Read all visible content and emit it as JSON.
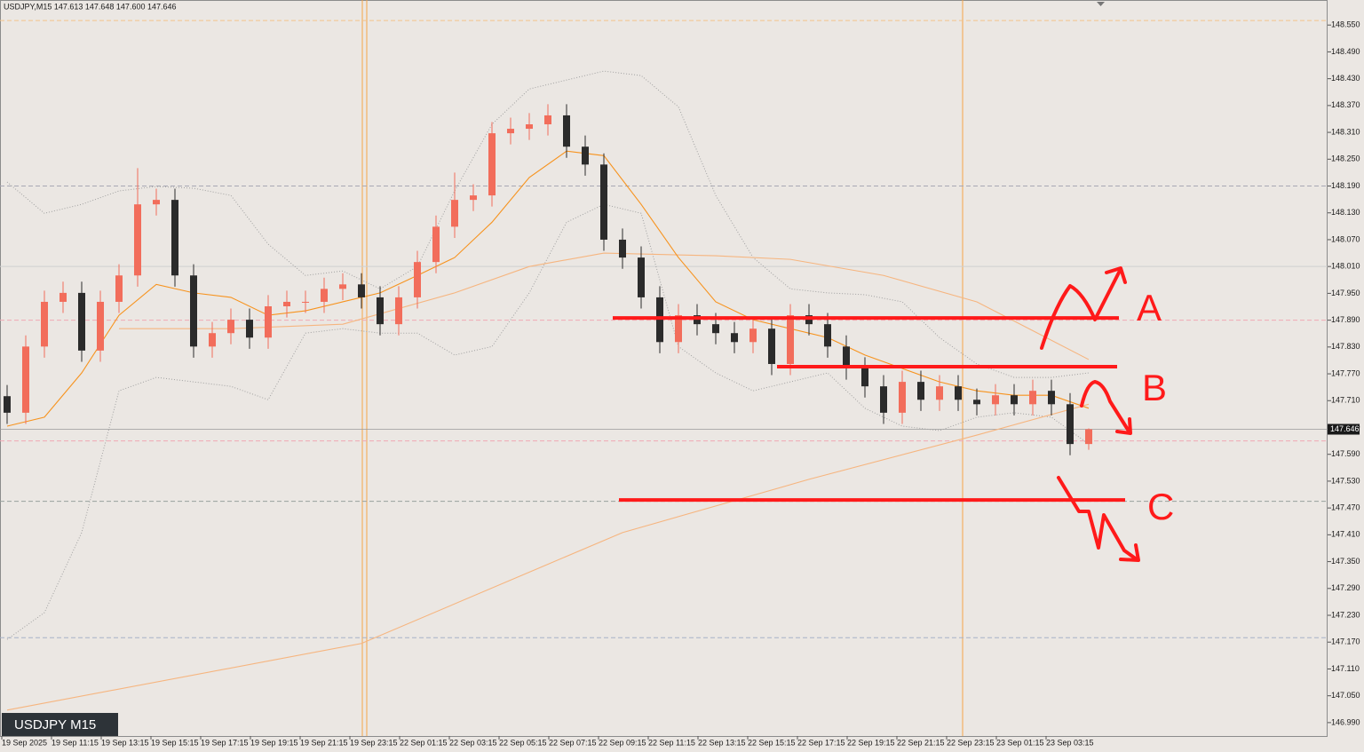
{
  "chart_data": {
    "type": "candlestick",
    "header": "USDJPY,M15  147.613 147.648 147.600 147.646",
    "badge": "USDJPY M15",
    "up_color": "#f26d5b",
    "down_color": "#2b2b2b",
    "open": [
      147.72,
      147.683,
      147.831,
      147.931,
      147.951,
      147.822,
      147.931,
      147.99,
      148.149,
      148.159,
      147.99,
      147.831,
      147.861,
      147.891,
      147.851,
      147.921,
      147.931,
      147.931,
      147.96,
      147.97,
      147.941,
      147.881,
      147.941,
      148.02,
      148.099,
      148.159,
      148.169,
      148.308,
      148.318,
      148.328,
      148.348,
      148.278,
      148.238,
      148.07,
      148.03,
      147.941,
      147.841,
      147.901,
      147.881,
      147.861,
      147.841,
      147.871,
      147.792,
      147.901,
      147.881,
      147.831,
      147.782,
      147.742,
      147.683,
      147.752,
      147.712,
      147.742,
      147.712,
      147.702,
      147.722,
      147.702,
      147.732,
      147.702,
      147.613
    ],
    "high": [
      147.745,
      147.856,
      147.956,
      147.976,
      147.976,
      147.956,
      148.015,
      148.23,
      148.184,
      148.184,
      148.015,
      147.886,
      147.916,
      147.916,
      147.946,
      147.956,
      147.956,
      147.985,
      147.995,
      147.995,
      147.966,
      147.966,
      148.045,
      148.124,
      148.22,
      148.194,
      148.333,
      148.343,
      148.353,
      148.373,
      148.373,
      148.303,
      148.263,
      148.095,
      148.055,
      147.966,
      147.926,
      147.926,
      147.906,
      147.886,
      147.896,
      147.896,
      147.926,
      147.926,
      147.906,
      147.856,
      147.807,
      147.767,
      147.777,
      147.777,
      147.767,
      147.767,
      147.737,
      147.747,
      147.747,
      147.757,
      147.757,
      147.727,
      147.648
    ],
    "low": [
      147.658,
      147.658,
      147.806,
      147.906,
      147.797,
      147.797,
      147.906,
      147.965,
      148.124,
      147.965,
      147.806,
      147.806,
      147.836,
      147.826,
      147.826,
      147.896,
      147.906,
      147.906,
      147.935,
      147.916,
      147.856,
      147.856,
      147.916,
      147.995,
      148.074,
      148.134,
      148.144,
      148.283,
      148.293,
      148.303,
      148.253,
      148.213,
      148.045,
      148.005,
      147.916,
      147.816,
      147.816,
      147.856,
      147.836,
      147.816,
      147.816,
      147.767,
      147.767,
      147.856,
      147.806,
      147.757,
      147.717,
      147.658,
      147.658,
      147.687,
      147.687,
      147.687,
      147.677,
      147.677,
      147.677,
      147.677,
      147.677,
      147.588,
      147.6
    ],
    "close": [
      147.683,
      147.831,
      147.931,
      147.951,
      147.822,
      147.931,
      147.99,
      148.149,
      148.159,
      147.99,
      147.831,
      147.861,
      147.891,
      147.851,
      147.921,
      147.931,
      147.931,
      147.96,
      147.97,
      147.941,
      147.881,
      147.941,
      148.02,
      148.099,
      148.159,
      148.169,
      148.308,
      148.318,
      148.328,
      148.348,
      148.278,
      148.238,
      148.07,
      148.03,
      147.941,
      147.841,
      147.901,
      147.881,
      147.861,
      147.841,
      147.871,
      147.792,
      147.901,
      147.881,
      147.831,
      147.782,
      147.742,
      147.683,
      147.752,
      147.712,
      147.742,
      147.712,
      147.702,
      147.722,
      147.702,
      147.732,
      147.702,
      147.613,
      147.646
    ],
    "ylim": [
      146.96,
      148.606
    ],
    "yticks": [
      {
        "value": 148.55,
        "label": "148.550"
      },
      {
        "value": 148.49,
        "label": "148.490"
      },
      {
        "value": 148.43,
        "label": "148.430"
      },
      {
        "value": 148.37,
        "label": "148.370"
      },
      {
        "value": 148.31,
        "label": "148.310"
      },
      {
        "value": 148.25,
        "label": "148.250"
      },
      {
        "value": 148.19,
        "label": "148.190"
      },
      {
        "value": 148.13,
        "label": "148.130"
      },
      {
        "value": 148.07,
        "label": "148.070"
      },
      {
        "value": 148.01,
        "label": "148.010"
      },
      {
        "value": 147.95,
        "label": "147.950"
      },
      {
        "value": 147.89,
        "label": "147.890"
      },
      {
        "value": 147.83,
        "label": "147.830"
      },
      {
        "value": 147.77,
        "label": "147.770"
      },
      {
        "value": 147.71,
        "label": "147.710"
      },
      {
        "value": 147.65,
        "label": "147.650"
      },
      {
        "value": 147.59,
        "label": "147.590"
      },
      {
        "value": 147.53,
        "label": "147.530"
      },
      {
        "value": 147.47,
        "label": "147.470"
      },
      {
        "value": 147.41,
        "label": "147.410"
      },
      {
        "value": 147.35,
        "label": "147.350"
      },
      {
        "value": 147.29,
        "label": "147.290"
      },
      {
        "value": 147.23,
        "label": "147.230"
      },
      {
        "value": 147.17,
        "label": "147.170"
      },
      {
        "value": 147.11,
        "label": "147.110"
      },
      {
        "value": 147.05,
        "label": "147.050"
      },
      {
        "value": 146.99,
        "label": "146.990"
      }
    ],
    "xticks": [
      "19 Sep 2025",
      "19 Sep 11:15",
      "19 Sep 13:15",
      "19 Sep 15:15",
      "19 Sep 17:15",
      "19 Sep 19:15",
      "19 Sep 21:15",
      "19 Sep 23:15",
      "22 Sep 01:15",
      "22 Sep 03:15",
      "22 Sep 05:15",
      "22 Sep 07:15",
      "22 Sep 09:15",
      "22 Sep 11:15",
      "22 Sep 13:15",
      "22 Sep 15:15",
      "22 Sep 17:15",
      "22 Sep 19:15",
      "22 Sep 21:15",
      "22 Sep 23:15",
      "23 Sep 01:15",
      "23 Sep 03:15"
    ],
    "current_price": {
      "value": 147.646,
      "label": "147.646"
    },
    "levels": [
      {
        "value": 148.56,
        "color": "#f3c48c",
        "style": "dashed"
      },
      {
        "value": 148.19,
        "color": "#a8a8b4",
        "style": "dashed"
      },
      {
        "value": 148.01,
        "color": "#cfcfcf",
        "style": "solid"
      },
      {
        "value": 147.89,
        "color": "#f0a9b4",
        "style": "dashed"
      },
      {
        "value": 147.62,
        "color": "#f0a9b4",
        "style": "dashed"
      },
      {
        "value": 147.485,
        "color": "#98a29e",
        "style": "dashed"
      },
      {
        "value": 147.18,
        "color": "#a6b2c8",
        "style": "dashed"
      }
    ],
    "indicators": [
      {
        "color": "#a0a0a0",
        "style": "dotted",
        "x": [
          0,
          2,
          4,
          6,
          8,
          10,
          12,
          14,
          16,
          18,
          20,
          22,
          24,
          26,
          28,
          30,
          32,
          34,
          36,
          38,
          40,
          42,
          44,
          46,
          48,
          50,
          52,
          54,
          56,
          58
        ],
        "values": [
          148.199,
          148.129,
          148.149,
          148.179,
          148.189,
          148.185,
          148.169,
          148.06,
          147.99,
          148.0,
          147.96,
          148.01,
          148.179,
          148.328,
          148.407,
          148.427,
          148.447,
          148.437,
          148.367,
          148.169,
          148.03,
          147.96,
          147.951,
          147.947,
          147.931,
          147.851,
          147.792,
          147.762,
          147.762,
          147.772
        ]
      },
      {
        "color": "#a0a0a0",
        "style": "dotted",
        "x": [
          0,
          2,
          4,
          6,
          8,
          10,
          12,
          14,
          16,
          18,
          20,
          22,
          24,
          26,
          28,
          30,
          32,
          34,
          36,
          38,
          40,
          42,
          44,
          46,
          48,
          50,
          52,
          54,
          56,
          58
        ],
        "values": [
          147.176,
          147.236,
          147.415,
          147.732,
          147.762,
          147.752,
          147.742,
          147.712,
          147.861,
          147.871,
          147.861,
          147.861,
          147.812,
          147.831,
          147.951,
          148.109,
          148.149,
          148.129,
          147.831,
          147.772,
          147.732,
          147.752,
          147.772,
          147.693,
          147.653,
          147.643,
          147.673,
          147.683,
          147.673,
          147.613
        ]
      },
      {
        "color": "#f6b57f",
        "style": "solid",
        "x": [
          6,
          12,
          18,
          24,
          28,
          32,
          38,
          42,
          47,
          52,
          58
        ],
        "values": [
          147.871,
          147.871,
          147.881,
          147.951,
          148.01,
          148.04,
          148.034,
          148.026,
          147.99,
          147.931,
          147.802
        ]
      },
      {
        "color": "#f6b57f",
        "style": "solid",
        "x": [
          0,
          19,
          33,
          43,
          52,
          58
        ],
        "values": [
          147.018,
          147.167,
          147.415,
          147.534,
          147.633,
          147.702
        ]
      },
      {
        "color": "#f7931e",
        "style": "solid",
        "x": [
          0,
          2,
          4,
          6,
          8,
          10,
          12,
          14,
          16,
          18,
          20,
          22,
          24,
          26,
          28,
          30,
          32,
          34,
          36,
          38,
          40,
          42,
          44,
          46,
          48,
          50,
          52,
          54,
          56,
          58
        ],
        "values": [
          147.653,
          147.673,
          147.772,
          147.901,
          147.97,
          147.951,
          147.941,
          147.901,
          147.911,
          147.931,
          147.951,
          147.99,
          148.03,
          148.109,
          148.209,
          148.268,
          148.258,
          148.149,
          148.03,
          147.931,
          147.891,
          147.871,
          147.851,
          147.812,
          147.782,
          147.752,
          147.732,
          147.722,
          147.722,
          147.693
        ]
      }
    ],
    "annotations": [
      {
        "label": "A",
        "value": 147.895
      },
      {
        "label": "B",
        "value": 147.786
      },
      {
        "label": "C",
        "value": 147.488
      }
    ]
  }
}
